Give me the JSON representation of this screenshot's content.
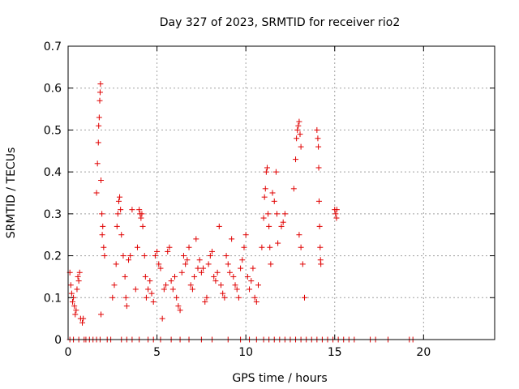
{
  "chart_data": {
    "type": "scatter",
    "title": "Day 327 of 2023, SRMTID for receiver rio2",
    "xlabel": "GPS time / hours",
    "ylabel": "SRMTID / TECUs",
    "xlim": [
      0,
      24
    ],
    "ylim": [
      0,
      0.7
    ],
    "xticks": [
      0,
      5,
      10,
      15,
      20
    ],
    "yticks": [
      0,
      0.1,
      0.2,
      0.3,
      0.4,
      0.5,
      0.6,
      0.7
    ],
    "grid": true,
    "marker": "+",
    "series": [
      {
        "name": "SRMTID",
        "color": "#e00000",
        "points": [
          [
            0.1,
            0.16
          ],
          [
            0.15,
            0.13
          ],
          [
            0.2,
            0.11
          ],
          [
            0.25,
            0.09
          ],
          [
            0.3,
            0.1
          ],
          [
            0.35,
            0.08
          ],
          [
            0.4,
            0.06
          ],
          [
            0.45,
            0.07
          ],
          [
            0.5,
            0.12
          ],
          [
            0.55,
            0.15
          ],
          [
            0.6,
            0.14
          ],
          [
            0.65,
            0.16
          ],
          [
            0.7,
            0.05
          ],
          [
            0.8,
            0.04
          ],
          [
            0.85,
            0.05
          ],
          [
            1.6,
            0.35
          ],
          [
            1.65,
            0.42
          ],
          [
            1.7,
            0.47
          ],
          [
            1.72,
            0.51
          ],
          [
            1.75,
            0.53
          ],
          [
            1.78,
            0.57
          ],
          [
            1.8,
            0.59
          ],
          [
            1.82,
            0.61
          ],
          [
            1.85,
            0.38
          ],
          [
            1.9,
            0.3
          ],
          [
            1.92,
            0.25
          ],
          [
            1.95,
            0.27
          ],
          [
            2.0,
            0.22
          ],
          [
            2.05,
            0.2
          ],
          [
            1.85,
            0.06
          ],
          [
            2.5,
            0.1
          ],
          [
            2.6,
            0.13
          ],
          [
            2.7,
            0.18
          ],
          [
            2.75,
            0.27
          ],
          [
            2.8,
            0.3
          ],
          [
            2.85,
            0.33
          ],
          [
            2.9,
            0.34
          ],
          [
            2.95,
            0.31
          ],
          [
            3.0,
            0.25
          ],
          [
            3.1,
            0.2
          ],
          [
            3.2,
            0.15
          ],
          [
            3.25,
            0.1
          ],
          [
            3.3,
            0.08
          ],
          [
            3.4,
            0.19
          ],
          [
            3.5,
            0.2
          ],
          [
            3.6,
            0.31
          ],
          [
            3.8,
            0.12
          ],
          [
            3.9,
            0.22
          ],
          [
            4.0,
            0.31
          ],
          [
            4.05,
            0.3
          ],
          [
            4.1,
            0.29
          ],
          [
            4.15,
            0.3
          ],
          [
            4.2,
            0.27
          ],
          [
            4.3,
            0.2
          ],
          [
            4.35,
            0.15
          ],
          [
            4.4,
            0.1
          ],
          [
            4.5,
            0.12
          ],
          [
            4.6,
            0.14
          ],
          [
            4.7,
            0.11
          ],
          [
            4.8,
            0.09
          ],
          [
            4.9,
            0.2
          ],
          [
            5.0,
            0.21
          ],
          [
            5.1,
            0.18
          ],
          [
            5.2,
            0.17
          ],
          [
            5.3,
            0.05
          ],
          [
            5.4,
            0.12
          ],
          [
            5.5,
            0.13
          ],
          [
            5.6,
            0.21
          ],
          [
            5.7,
            0.22
          ],
          [
            5.8,
            0.14
          ],
          [
            5.9,
            0.12
          ],
          [
            6.0,
            0.15
          ],
          [
            6.1,
            0.1
          ],
          [
            6.2,
            0.08
          ],
          [
            6.3,
            0.07
          ],
          [
            6.4,
            0.16
          ],
          [
            6.5,
            0.2
          ],
          [
            6.6,
            0.18
          ],
          [
            6.7,
            0.19
          ],
          [
            6.8,
            0.22
          ],
          [
            6.9,
            0.13
          ],
          [
            7.0,
            0.12
          ],
          [
            7.1,
            0.15
          ],
          [
            7.2,
            0.24
          ],
          [
            7.3,
            0.17
          ],
          [
            7.4,
            0.19
          ],
          [
            7.5,
            0.16
          ],
          [
            7.6,
            0.17
          ],
          [
            7.7,
            0.09
          ],
          [
            7.8,
            0.1
          ],
          [
            7.9,
            0.18
          ],
          [
            8.0,
            0.2
          ],
          [
            8.1,
            0.21
          ],
          [
            8.2,
            0.15
          ],
          [
            8.3,
            0.14
          ],
          [
            8.4,
            0.16
          ],
          [
            8.5,
            0.27
          ],
          [
            8.6,
            0.13
          ],
          [
            8.7,
            0.11
          ],
          [
            8.8,
            0.1
          ],
          [
            8.9,
            0.2
          ],
          [
            9.0,
            0.18
          ],
          [
            9.1,
            0.16
          ],
          [
            9.2,
            0.24
          ],
          [
            9.3,
            0.15
          ],
          [
            9.4,
            0.13
          ],
          [
            9.5,
            0.12
          ],
          [
            9.6,
            0.1
          ],
          [
            9.7,
            0.17
          ],
          [
            9.8,
            0.19
          ],
          [
            9.9,
            0.22
          ],
          [
            10.0,
            0.25
          ],
          [
            10.1,
            0.15
          ],
          [
            10.2,
            0.12
          ],
          [
            10.3,
            0.14
          ],
          [
            10.4,
            0.17
          ],
          [
            10.5,
            0.1
          ],
          [
            10.6,
            0.09
          ],
          [
            10.7,
            0.13
          ],
          [
            10.9,
            0.22
          ],
          [
            11.0,
            0.29
          ],
          [
            11.05,
            0.34
          ],
          [
            11.1,
            0.36
          ],
          [
            11.15,
            0.4
          ],
          [
            11.2,
            0.41
          ],
          [
            11.25,
            0.3
          ],
          [
            11.3,
            0.27
          ],
          [
            11.35,
            0.22
          ],
          [
            11.4,
            0.18
          ],
          [
            11.5,
            0.35
          ],
          [
            11.6,
            0.33
          ],
          [
            11.7,
            0.4
          ],
          [
            11.75,
            0.3
          ],
          [
            11.8,
            0.23
          ],
          [
            12.0,
            0.27
          ],
          [
            12.1,
            0.28
          ],
          [
            12.2,
            0.3
          ],
          [
            12.7,
            0.36
          ],
          [
            12.8,
            0.43
          ],
          [
            12.85,
            0.48
          ],
          [
            12.9,
            0.5
          ],
          [
            12.95,
            0.51
          ],
          [
            13.0,
            0.52
          ],
          [
            13.05,
            0.49
          ],
          [
            13.1,
            0.46
          ],
          [
            13.0,
            0.25
          ],
          [
            13.1,
            0.22
          ],
          [
            13.2,
            0.18
          ],
          [
            13.3,
            0.1
          ],
          [
            14.0,
            0.5
          ],
          [
            14.05,
            0.48
          ],
          [
            14.08,
            0.46
          ],
          [
            14.1,
            0.41
          ],
          [
            14.12,
            0.33
          ],
          [
            14.15,
            0.27
          ],
          [
            14.18,
            0.22
          ],
          [
            14.2,
            0.19
          ],
          [
            14.22,
            0.18
          ],
          [
            15.0,
            0.31
          ],
          [
            15.05,
            0.3
          ],
          [
            15.1,
            0.29
          ],
          [
            15.12,
            0.31
          ],
          [
            0.1,
            0
          ],
          [
            0.3,
            0
          ],
          [
            0.6,
            0
          ],
          [
            0.9,
            0
          ],
          [
            1.0,
            0
          ],
          [
            1.2,
            0
          ],
          [
            1.4,
            0
          ],
          [
            1.6,
            0
          ],
          [
            1.8,
            0
          ],
          [
            2.2,
            0
          ],
          [
            2.4,
            0
          ],
          [
            3.0,
            0
          ],
          [
            3.3,
            0
          ],
          [
            3.6,
            0
          ],
          [
            4.0,
            0
          ],
          [
            4.5,
            0
          ],
          [
            4.8,
            0
          ],
          [
            5.2,
            0
          ],
          [
            5.8,
            0
          ],
          [
            6.3,
            0
          ],
          [
            6.8,
            0
          ],
          [
            7.5,
            0
          ],
          [
            8.1,
            0
          ],
          [
            9.0,
            0
          ],
          [
            9.7,
            0
          ],
          [
            10.2,
            0
          ],
          [
            10.6,
            0
          ],
          [
            11.0,
            0
          ],
          [
            11.3,
            0
          ],
          [
            11.6,
            0
          ],
          [
            11.9,
            0
          ],
          [
            12.2,
            0
          ],
          [
            12.5,
            0
          ],
          [
            12.8,
            0
          ],
          [
            13.1,
            0
          ],
          [
            13.4,
            0
          ],
          [
            13.7,
            0
          ],
          [
            14.0,
            0
          ],
          [
            14.3,
            0
          ],
          [
            14.6,
            0
          ],
          [
            14.9,
            0
          ],
          [
            15.2,
            0
          ],
          [
            15.5,
            0
          ],
          [
            15.8,
            0
          ],
          [
            16.1,
            0
          ],
          [
            17.0,
            0
          ],
          [
            17.3,
            0
          ],
          [
            18.0,
            0
          ],
          [
            19.2,
            0
          ],
          [
            19.4,
            0
          ]
        ]
      }
    ]
  }
}
